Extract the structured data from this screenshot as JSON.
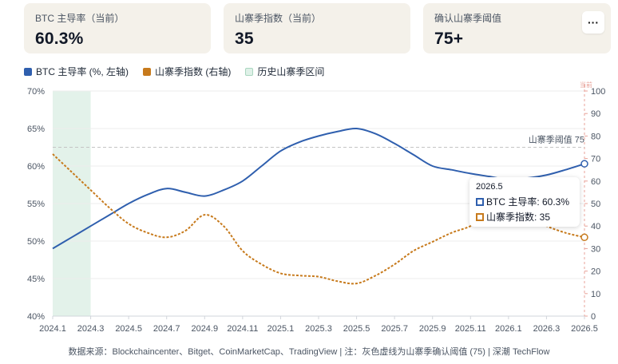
{
  "cards": [
    {
      "label": "BTC 主导率（当前）",
      "value": "60.3%"
    },
    {
      "label": "山寨季指数（当前）",
      "value": "35"
    },
    {
      "label": "确认山寨季阈值",
      "value": "75+"
    }
  ],
  "more_label": "···",
  "legend": [
    {
      "label": "BTC 主导率 (%, 左轴)",
      "color": "#2f5fae"
    },
    {
      "label": "山寨季指数 (右轴)",
      "color": "#c77a1c"
    },
    {
      "label": "历史山寨季区间",
      "color": "#dff1e8"
    }
  ],
  "threshold_label": "山寨季阈值 75",
  "right_axis_top_label": "当前",
  "tooltip": {
    "title": "2026.5",
    "rows": [
      {
        "text": "BTC 主导率: 60.3%"
      },
      {
        "text": "山寨季指数: 35"
      }
    ]
  },
  "footer": "数据来源：Blockchaincenter、Bitget、CoinMarketCap、TradingView | 注：灰色虚线为山寨季确认阈值 (75) | 深潮 TechFlow",
  "chart_data": {
    "type": "line",
    "categories": [
      "2024.1",
      "2024.2",
      "2024.3",
      "2024.4",
      "2024.5",
      "2024.6",
      "2024.7",
      "2024.8",
      "2024.9",
      "2024.10",
      "2024.11",
      "2024.12",
      "2025.1",
      "2025.2",
      "2025.3",
      "2025.4",
      "2025.5",
      "2025.6",
      "2025.7",
      "2025.8",
      "2025.9",
      "2025.10",
      "2025.11",
      "2025.12",
      "2026.1",
      "2026.2",
      "2026.3",
      "2026.4",
      "2026.5"
    ],
    "tick_labels": [
      "2024.1",
      "2024.3",
      "2024.5",
      "2024.7",
      "2024.9",
      "2024.11",
      "2025.1",
      "2025.3",
      "2025.5",
      "2025.7",
      "2025.9",
      "2025.11",
      "2026.1",
      "2026.3",
      "2026.5"
    ],
    "series": [
      {
        "name": "BTC 主导率 (%, 左轴)",
        "axis": "left",
        "color": "#2f5fae",
        "style": "solid",
        "values": [
          49.0,
          50.5,
          52.0,
          53.5,
          55.0,
          56.2,
          57.0,
          56.5,
          56.0,
          56.8,
          58.0,
          60.0,
          62.0,
          63.2,
          64.0,
          64.6,
          65.0,
          64.3,
          63.0,
          61.5,
          60.0,
          59.5,
          59.0,
          58.6,
          58.2,
          58.4,
          58.8,
          59.5,
          60.3
        ]
      },
      {
        "name": "山寨季指数 (右轴)",
        "axis": "right",
        "color": "#c77a1c",
        "style": "dashed",
        "values": [
          72,
          64,
          56,
          48,
          41,
          37,
          35,
          38,
          45,
          40,
          29,
          23,
          19,
          18,
          17.5,
          15.5,
          14.5,
          18,
          23,
          29,
          33,
          37,
          40,
          45,
          47,
          44,
          40,
          37,
          35
        ]
      }
    ],
    "left_axis": {
      "ylim": [
        40,
        70
      ],
      "ticks": [
        "40%",
        "45%",
        "50%",
        "55%",
        "60%",
        "65%",
        "70%"
      ]
    },
    "right_axis": {
      "ylim": [
        0,
        100
      ],
      "ticks": [
        "0",
        "10",
        "20",
        "30",
        "40",
        "50",
        "60",
        "70",
        "80",
        "90",
        "100"
      ]
    },
    "threshold": 75,
    "shaded_region": {
      "x": [
        "2024.1",
        "2024.3"
      ]
    },
    "grid": true
  }
}
